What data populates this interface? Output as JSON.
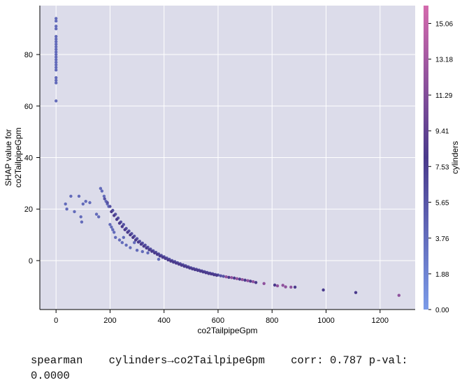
{
  "chart_data": {
    "type": "scatter",
    "title": "",
    "xlabel": "co2TailpipeGpm",
    "ylabel": "SHAP value for\nco2TailpipeGpm",
    "xlim": [
      -60,
      1330
    ],
    "ylim": [
      -19,
      99
    ],
    "xticks": [
      0,
      200,
      400,
      600,
      800,
      1000,
      1200
    ],
    "yticks": [
      0,
      20,
      40,
      60,
      80
    ],
    "grid": true,
    "background": "#dcdcea",
    "colorbar": {
      "label": "cylinders",
      "range": [
        0,
        16
      ],
      "ticks": [
        "0.00",
        "1.88",
        "3.76",
        "5.65",
        "7.53",
        "9.41",
        "11.29",
        "13.18",
        "15.06"
      ],
      "low_color": "#7b9be8",
      "mid_color": "#4a3a8c",
      "high_color": "#d46aad"
    },
    "series": [
      {
        "color_by": "cylinders",
        "points": [
          [
            0,
            94,
            4
          ],
          [
            0,
            93,
            4
          ],
          [
            0,
            91,
            4
          ],
          [
            0,
            90,
            4
          ],
          [
            0,
            87,
            4
          ],
          [
            0,
            86,
            4
          ],
          [
            0,
            85,
            4
          ],
          [
            0,
            84,
            4
          ],
          [
            0,
            83,
            4
          ],
          [
            0,
            82,
            4
          ],
          [
            0,
            81,
            4
          ],
          [
            0,
            80,
            4
          ],
          [
            0,
            79,
            4
          ],
          [
            0,
            78,
            4
          ],
          [
            0,
            77,
            4
          ],
          [
            0,
            76,
            4
          ],
          [
            0,
            75,
            4
          ],
          [
            0,
            74,
            4
          ],
          [
            0,
            71,
            4
          ],
          [
            0,
            70,
            4
          ],
          [
            0,
            69,
            4
          ],
          [
            0,
            62,
            4
          ],
          [
            35,
            22,
            4
          ],
          [
            40,
            20,
            4
          ],
          [
            55,
            25,
            4
          ],
          [
            68,
            19,
            4
          ],
          [
            85,
            25,
            4
          ],
          [
            92,
            17,
            4
          ],
          [
            95,
            15,
            4
          ],
          [
            100,
            22,
            4
          ],
          [
            110,
            23,
            4
          ],
          [
            125,
            22.5,
            4
          ],
          [
            150,
            18,
            4
          ],
          [
            158,
            17,
            4
          ],
          [
            165,
            28,
            4
          ],
          [
            170,
            27,
            4
          ],
          [
            178,
            25,
            4
          ],
          [
            185,
            23,
            4
          ],
          [
            190,
            22,
            4
          ],
          [
            195,
            21,
            4
          ],
          [
            200,
            14,
            4
          ],
          [
            205,
            13,
            4
          ],
          [
            210,
            12,
            4
          ],
          [
            215,
            11,
            4
          ],
          [
            220,
            9,
            4
          ],
          [
            235,
            8,
            4
          ],
          [
            245,
            7,
            4
          ],
          [
            250,
            9,
            4
          ],
          [
            260,
            6,
            4
          ],
          [
            275,
            5,
            4
          ],
          [
            290,
            7,
            4
          ],
          [
            300,
            4,
            4
          ],
          [
            320,
            3.5,
            4
          ],
          [
            340,
            3,
            4
          ],
          [
            380,
            0.5,
            4
          ],
          [
            180,
            24,
            6
          ],
          [
            190,
            22.5,
            6
          ],
          [
            200,
            21,
            6
          ],
          [
            210,
            19.5,
            6
          ],
          [
            220,
            18,
            6
          ],
          [
            230,
            16.5,
            6
          ],
          [
            240,
            15,
            6
          ],
          [
            250,
            14,
            6
          ],
          [
            260,
            12.5,
            6
          ],
          [
            270,
            11.5,
            6
          ],
          [
            280,
            10.5,
            6
          ],
          [
            290,
            9.5,
            6
          ],
          [
            300,
            8.5,
            6
          ],
          [
            310,
            7.5,
            6
          ],
          [
            320,
            6.8,
            6
          ],
          [
            330,
            6,
            6
          ],
          [
            340,
            5.2,
            6
          ],
          [
            350,
            4.5,
            6
          ],
          [
            360,
            3.8,
            6
          ],
          [
            370,
            3.2,
            6
          ],
          [
            380,
            2.6,
            6
          ],
          [
            390,
            2,
            6
          ],
          [
            400,
            1.5,
            6
          ],
          [
            410,
            1,
            6
          ],
          [
            420,
            0.5,
            6
          ],
          [
            430,
            0,
            6
          ],
          [
            440,
            -0.4,
            6
          ],
          [
            450,
            -0.8,
            6
          ],
          [
            460,
            -1.2,
            6
          ],
          [
            470,
            -1.6,
            6
          ],
          [
            480,
            -2,
            6
          ],
          [
            490,
            -2.4,
            6
          ],
          [
            500,
            -2.8,
            6
          ],
          [
            510,
            -3.1,
            6
          ],
          [
            520,
            -3.4,
            6
          ],
          [
            530,
            -3.7,
            6
          ],
          [
            540,
            -4,
            6
          ],
          [
            550,
            -4.3,
            6
          ],
          [
            560,
            -4.6,
            6
          ],
          [
            570,
            -4.9,
            6
          ],
          [
            580,
            -5.1,
            6
          ],
          [
            590,
            -5.4,
            6
          ],
          [
            600,
            -5.6,
            6
          ],
          [
            610,
            -5.9,
            6
          ],
          [
            620,
            -6.1,
            6
          ],
          [
            205,
            19,
            8
          ],
          [
            215,
            17.5,
            8
          ],
          [
            225,
            16,
            8
          ],
          [
            235,
            14.5,
            8
          ],
          [
            245,
            13.2,
            8
          ],
          [
            255,
            12,
            8
          ],
          [
            265,
            11,
            8
          ],
          [
            275,
            10,
            8
          ],
          [
            285,
            9,
            8
          ],
          [
            295,
            8,
            8
          ],
          [
            305,
            7.2,
            8
          ],
          [
            315,
            6.4,
            8
          ],
          [
            325,
            5.6,
            8
          ],
          [
            335,
            4.9,
            8
          ],
          [
            345,
            4.2,
            8
          ],
          [
            355,
            3.6,
            8
          ],
          [
            365,
            3,
            8
          ],
          [
            375,
            2.4,
            8
          ],
          [
            385,
            1.8,
            8
          ],
          [
            395,
            1.3,
            8
          ],
          [
            405,
            0.8,
            8
          ],
          [
            415,
            0.3,
            8
          ],
          [
            425,
            -0.2,
            8
          ],
          [
            435,
            -0.6,
            8
          ],
          [
            445,
            -1,
            8
          ],
          [
            455,
            -1.4,
            8
          ],
          [
            465,
            -1.8,
            8
          ],
          [
            475,
            -2.2,
            8
          ],
          [
            485,
            -2.5,
            8
          ],
          [
            495,
            -2.9,
            8
          ],
          [
            505,
            -3.2,
            8
          ],
          [
            515,
            -3.5,
            8
          ],
          [
            525,
            -3.8,
            8
          ],
          [
            535,
            -4.1,
            8
          ],
          [
            545,
            -4.4,
            8
          ],
          [
            555,
            -4.7,
            8
          ],
          [
            565,
            -5,
            8
          ],
          [
            575,
            -5.2,
            8
          ],
          [
            585,
            -5.5,
            8
          ],
          [
            595,
            -5.7,
            8
          ],
          [
            640,
            -6.5,
            8
          ],
          [
            660,
            -6.8,
            8
          ],
          [
            680,
            -7.2,
            8
          ],
          [
            700,
            -7.6,
            8
          ],
          [
            720,
            -8,
            8
          ],
          [
            740,
            -8.5,
            8
          ],
          [
            810,
            -9.5,
            8
          ],
          [
            885,
            -10.3,
            8
          ],
          [
            990,
            -11.4,
            8
          ],
          [
            1110,
            -12.4,
            8
          ],
          [
            630,
            -6.3,
            12
          ],
          [
            650,
            -6.6,
            12
          ],
          [
            670,
            -7,
            12
          ],
          [
            690,
            -7.4,
            12
          ],
          [
            710,
            -7.8,
            12
          ],
          [
            730,
            -8.2,
            12
          ],
          [
            770,
            -8.9,
            12
          ],
          [
            820,
            -9.8,
            12
          ],
          [
            840,
            -9.6,
            12
          ],
          [
            850,
            -10.2,
            12
          ],
          [
            870,
            -10.3,
            12
          ],
          [
            1270,
            -13.5,
            12
          ]
        ]
      }
    ]
  },
  "stats": {
    "method": "spearman",
    "pair": "cylinders→co2TailpipeGpm",
    "corr_label": "corr:",
    "corr_value": "0.787",
    "pval_label": "p-val:",
    "pval_value": "0.0000"
  }
}
